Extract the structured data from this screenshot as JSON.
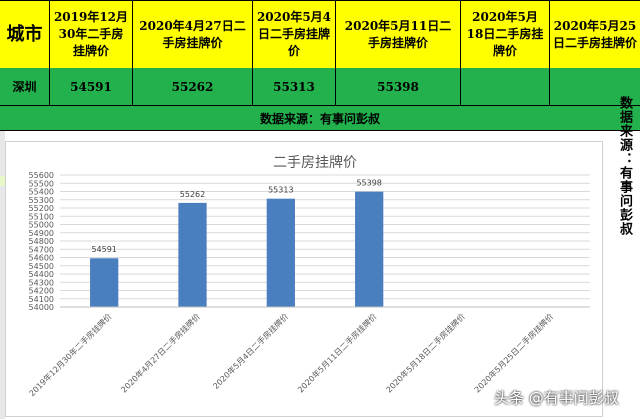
{
  "table": {
    "city_header": "城市",
    "date_headers": [
      "2019年12月30年二手房挂牌价",
      "2020年4月27日二手房挂牌价",
      "2020年5月4日二手房挂牌价",
      "2020年5月11日二手房挂牌价",
      "2020年5月18日二手房挂牌价",
      "2020年5月25日二手房挂牌价"
    ],
    "city": "深圳",
    "values": [
      "54591",
      "55262",
      "55313",
      "55398",
      "",
      ""
    ],
    "source": "数据来源：有事问彭叔"
  },
  "side_note": "数据来源：有事问彭叔",
  "watermark": "头条 @有事问彭叔",
  "colors": {
    "header_bg": "#ffff00",
    "data_bg": "#22b14c",
    "bar": "#4a7fbf"
  },
  "chart_data": {
    "type": "bar",
    "title": "二手房挂牌价",
    "categories": [
      "2019年12月30年二手房挂牌价",
      "2020年4月27日二手房挂牌价",
      "2020年5月4日二手房挂牌价",
      "2020年5月11日二手房挂牌价",
      "2020年5月18日二手房挂牌价",
      "2020年5月25日二手房挂牌价"
    ],
    "values": [
      54591,
      55262,
      55313,
      55398,
      null,
      null
    ],
    "data_labels": [
      "54591",
      "55262",
      "55313",
      "55398",
      "",
      ""
    ],
    "ylim": [
      54000,
      55600
    ],
    "yticks": [
      54000,
      54100,
      54200,
      54300,
      54400,
      54500,
      54600,
      54700,
      54800,
      54900,
      55000,
      55100,
      55200,
      55300,
      55400,
      55500,
      55600
    ],
    "grid": true,
    "legend": "none"
  }
}
